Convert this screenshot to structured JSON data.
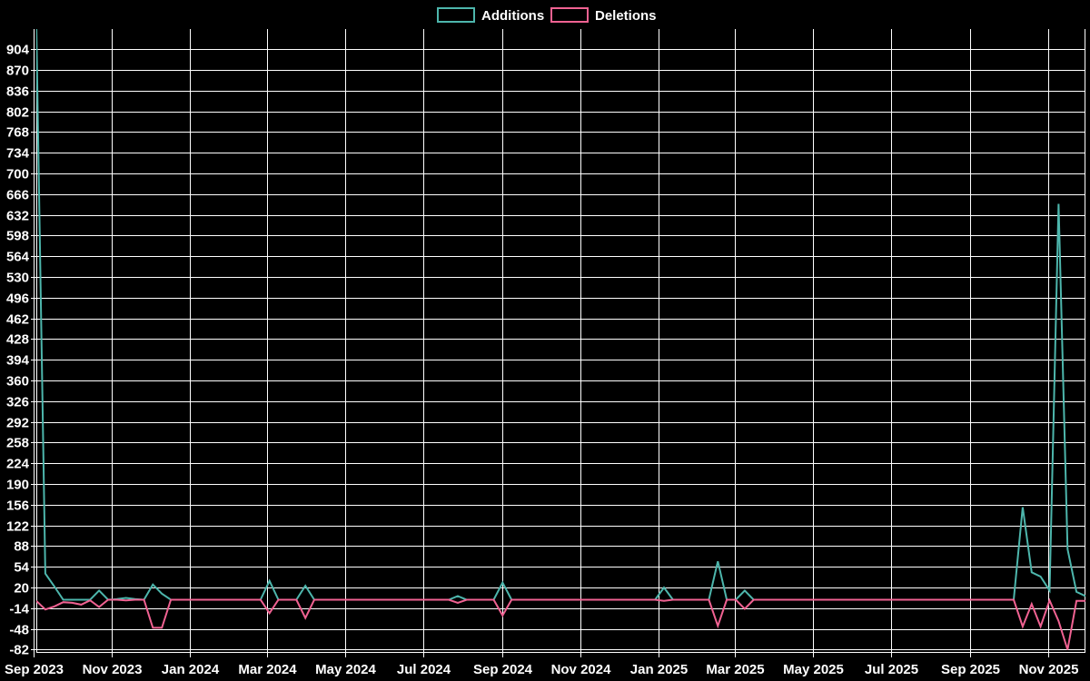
{
  "chart_data": {
    "type": "line",
    "title": "",
    "background": "#000000",
    "grid": {
      "show": true,
      "color": "#ffffff"
    },
    "axis_text_color": "#ffffff",
    "legend": {
      "position": "top-center",
      "items": [
        {
          "label": "Additions",
          "color": "#4db6ac"
        },
        {
          "label": "Deletions",
          "color": "#f06292"
        }
      ]
    },
    "x_unit": "week",
    "x_ticks": [
      {
        "label": "Sep 2023",
        "week": -0.29
      },
      {
        "label": "Nov 2023",
        "week": 8.43
      },
      {
        "label": "Jan 2024",
        "week": 17.14
      },
      {
        "label": "Mar 2024",
        "week": 25.71
      },
      {
        "label": "May 2024",
        "week": 34.43
      },
      {
        "label": "Jul 2024",
        "week": 43.14
      },
      {
        "label": "Sep 2024",
        "week": 52.0
      },
      {
        "label": "Nov 2024",
        "week": 60.71
      },
      {
        "label": "Jan 2025",
        "week": 69.43
      },
      {
        "label": "Mar 2025",
        "week": 77.86
      },
      {
        "label": "May 2025",
        "week": 86.57
      },
      {
        "label": "Jul 2025",
        "week": 95.29
      },
      {
        "label": "Sep 2025",
        "week": 104.14
      },
      {
        "label": "Nov 2025",
        "week": 112.86
      }
    ],
    "y_ticks": [
      904,
      870,
      836,
      802,
      768,
      734,
      700,
      666,
      632,
      598,
      564,
      530,
      496,
      462,
      428,
      394,
      360,
      326,
      292,
      258,
      224,
      190,
      156,
      122,
      88,
      54,
      20,
      -14,
      -48,
      -82
    ],
    "ylim": [
      -86,
      937
    ],
    "series": [
      {
        "name": "Additions",
        "color": "#4db6ac",
        "values": [
          940,
          43,
          22,
          0,
          0,
          0,
          0,
          15,
          0,
          1,
          3,
          1,
          0,
          25,
          10,
          0,
          0,
          0,
          0,
          0,
          0,
          0,
          0,
          0,
          0,
          0,
          31,
          0,
          0,
          0,
          23,
          0,
          0,
          0,
          0,
          0,
          0,
          0,
          0,
          0,
          0,
          0,
          0,
          0,
          0,
          0,
          0,
          6,
          0,
          0,
          0,
          0,
          28,
          0,
          0,
          0,
          0,
          0,
          0,
          0,
          0,
          0,
          0,
          0,
          0,
          0,
          0,
          0,
          0,
          0,
          20,
          0,
          0,
          0,
          0,
          0,
          63,
          0,
          0,
          15,
          0,
          0,
          0,
          0,
          0,
          0,
          0,
          0,
          0,
          0,
          0,
          0,
          0,
          0,
          0,
          0,
          0,
          0,
          0,
          0,
          0,
          0,
          0,
          0,
          0,
          0,
          0,
          0,
          0,
          0,
          152,
          45,
          38,
          15,
          650,
          83,
          13,
          6
        ]
      },
      {
        "name": "Deletions",
        "color": "#f06292",
        "values": [
          -2,
          -16,
          -11,
          -4,
          -5,
          -8,
          -1,
          -12,
          0,
          0,
          -1,
          0,
          0,
          -46,
          -46,
          0,
          0,
          0,
          0,
          0,
          0,
          0,
          0,
          0,
          0,
          0,
          -22,
          0,
          0,
          0,
          -30,
          0,
          0,
          0,
          0,
          0,
          0,
          0,
          0,
          0,
          0,
          0,
          0,
          0,
          0,
          0,
          0,
          -5,
          0,
          0,
          0,
          0,
          -26,
          0,
          0,
          0,
          0,
          0,
          0,
          0,
          0,
          0,
          0,
          0,
          0,
          0,
          0,
          0,
          0,
          0,
          -2,
          0,
          0,
          0,
          0,
          0,
          -43,
          0,
          0,
          -15,
          0,
          0,
          0,
          0,
          0,
          0,
          0,
          0,
          0,
          0,
          0,
          0,
          0,
          0,
          0,
          0,
          0,
          0,
          0,
          0,
          0,
          0,
          0,
          0,
          0,
          0,
          0,
          0,
          0,
          0,
          -44,
          -7,
          -44,
          -1,
          -35,
          -82,
          -2,
          -2
        ]
      }
    ]
  }
}
